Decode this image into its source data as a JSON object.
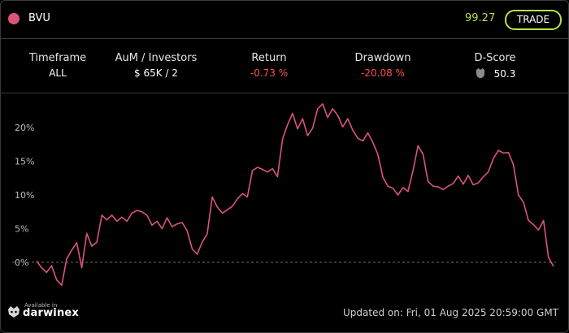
{
  "header": {
    "ticker": "BVU",
    "price": "99.27",
    "trade_label": "TRADE",
    "colors": {
      "dot": "#d9557a",
      "price": "#b8e04a",
      "trade_border": "#b8e04a"
    }
  },
  "stats": {
    "timeframe": {
      "label": "Timeframe",
      "value": "ALL"
    },
    "aum": {
      "label": "AuM / Investors",
      "value": "$ 65K / 2"
    },
    "return": {
      "label": "Return",
      "value": "-0.73 %"
    },
    "drawdown": {
      "label": "Drawdown",
      "value": "-20.08 %"
    },
    "dscore": {
      "label": "D-Score",
      "value": "50.3",
      "icon": "shield-icon"
    }
  },
  "chart_data": {
    "type": "line",
    "ytick_labels": [
      "20%",
      "15%",
      "10%",
      "5%",
      "0%"
    ],
    "yticks": [
      20,
      15,
      10,
      5,
      0
    ],
    "ylim": [
      -4,
      24
    ],
    "baseline": 0,
    "grid": false,
    "line_color": "#d9557a",
    "series": [
      {
        "values": [
          0.2,
          -0.8,
          -1.5,
          -0.5,
          -2.6,
          -3.4,
          0.5,
          1.8,
          2.9,
          -0.8,
          4.3,
          2.4,
          3.0,
          7.0,
          6.3,
          7.0,
          6.1,
          6.7,
          6.1,
          7.3,
          7.7,
          7.5,
          7.0,
          5.5,
          6.1,
          5.0,
          6.6,
          5.3,
          5.7,
          5.9,
          4.7,
          2.0,
          1.2,
          3.0,
          4.2,
          9.7,
          8.2,
          7.3,
          7.8,
          8.3,
          9.4,
          10.2,
          9.7,
          13.6,
          14.1,
          13.8,
          13.4,
          13.9,
          12.7,
          18.3,
          20.4,
          22.1,
          19.8,
          21.3,
          18.8,
          19.9,
          22.8,
          23.5,
          21.5,
          22.8,
          21.8,
          20.1,
          21.3,
          19.6,
          18.4,
          18.0,
          19.2,
          17.8,
          16.0,
          12.6,
          11.3,
          11.0,
          10.0,
          11.1,
          10.5,
          13.6,
          17.3,
          16.0,
          12.0,
          11.3,
          11.2,
          10.8,
          11.3,
          11.7,
          12.8,
          11.6,
          12.9,
          11.5,
          11.8,
          12.7,
          13.4,
          15.4,
          16.6,
          16.2,
          16.3,
          14.5,
          10.0,
          8.9,
          6.2,
          5.6,
          4.8,
          6.2,
          0.7,
          -0.6
        ]
      }
    ]
  },
  "footer": {
    "available_in": "Available in",
    "brand": "darwinex",
    "updated": "Updated on: Fri, 01 Aug 2025 20:59:00 GMT"
  }
}
